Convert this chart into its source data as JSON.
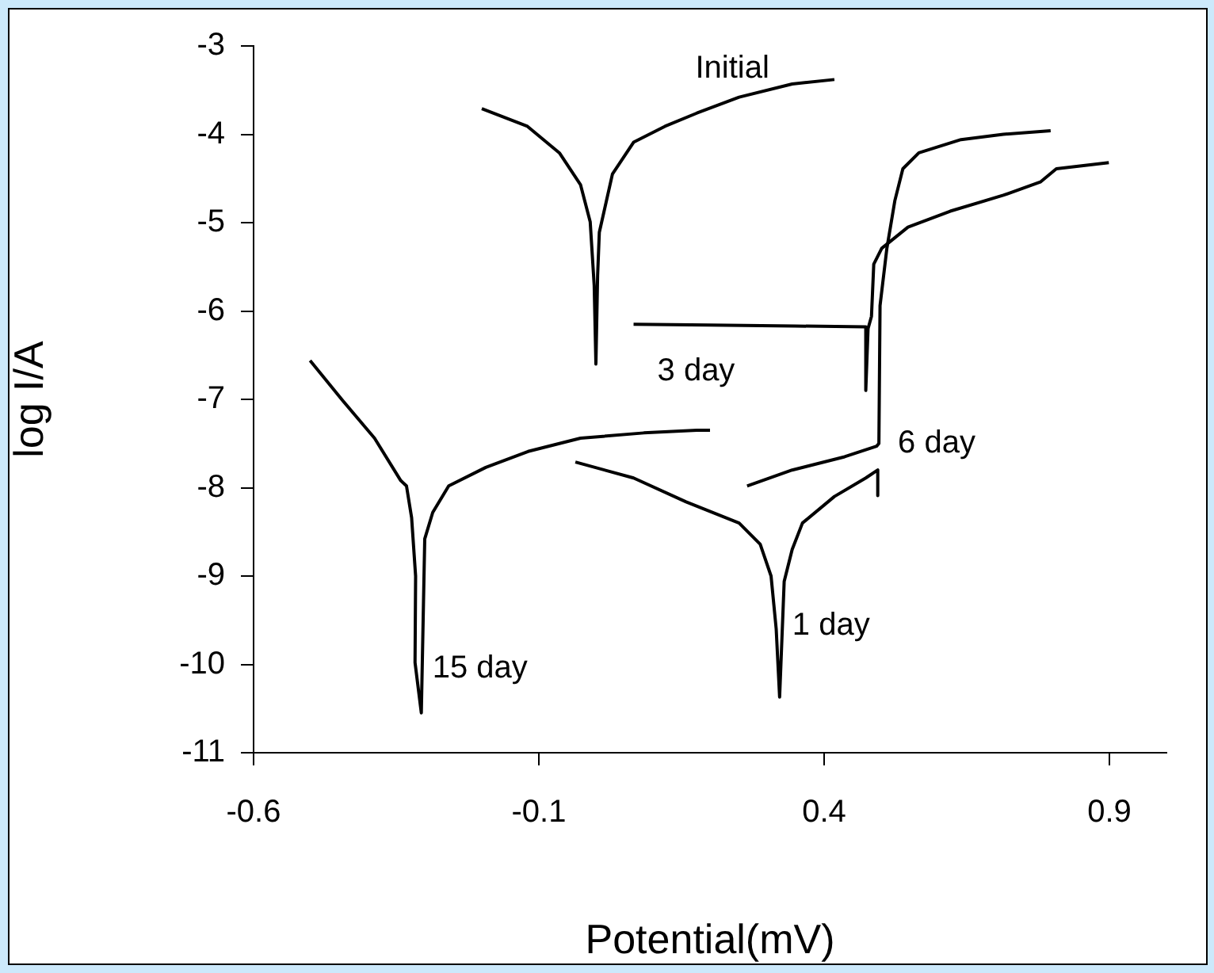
{
  "chart_data": {
    "type": "line",
    "xlabel": "Potential(mV)",
    "ylabel": "log I/A",
    "xlim": [
      -0.6,
      1.0
    ],
    "xticks": [
      -0.6,
      -0.1,
      0.4,
      0.9
    ],
    "ylim": [
      -11,
      -3
    ],
    "yticks": [
      -3,
      -4,
      -5,
      -6,
      -7,
      -8,
      -9,
      -10,
      -11
    ],
    "grid": false,
    "legend": false,
    "marker": "none",
    "line_style": "solid",
    "series": [
      {
        "name": "Initial",
        "color": "#000000",
        "x": [
          -0.2,
          -0.12,
          -0.064,
          -0.027,
          -0.01,
          -0.003,
          0.0,
          0.003,
          0.006,
          0.029,
          0.066,
          0.121,
          0.177,
          0.251,
          0.344,
          0.418
        ],
        "values": [
          -3.71,
          -3.91,
          -4.21,
          -4.57,
          -4.99,
          -5.71,
          -6.6,
          -5.6,
          -5.11,
          -4.45,
          -4.09,
          -3.91,
          -3.76,
          -3.58,
          -3.43,
          -3.38
        ]
      },
      {
        "name": "3 day",
        "color": "#000000",
        "x": [
          0.066,
          0.2,
          0.35,
          0.473,
          0.473,
          0.477,
          0.483,
          0.487,
          0.501,
          0.547,
          0.621,
          0.714,
          0.779,
          0.807,
          0.899
        ],
        "values": [
          -6.15,
          -6.16,
          -6.17,
          -6.18,
          -6.9,
          -6.2,
          -6.06,
          -5.47,
          -5.29,
          -5.05,
          -4.87,
          -4.69,
          -4.54,
          -4.39,
          -4.32
        ]
      },
      {
        "name": "6 day",
        "color": "#000000",
        "x": [
          0.265,
          0.344,
          0.436,
          0.492,
          0.496,
          0.498,
          0.51,
          0.524,
          0.538,
          0.566,
          0.64,
          0.714,
          0.797
        ],
        "values": [
          -7.98,
          -7.8,
          -7.65,
          -7.53,
          -7.5,
          -5.94,
          -5.29,
          -4.75,
          -4.39,
          -4.21,
          -4.06,
          -4.0,
          -3.96
        ]
      },
      {
        "name": "1 day",
        "color": "#000000",
        "x": [
          -0.036,
          0.066,
          0.158,
          0.251,
          0.288,
          0.307,
          0.316,
          0.322,
          0.33,
          0.344,
          0.362,
          0.418,
          0.473,
          0.494,
          0.494
        ],
        "values": [
          -7.71,
          -7.89,
          -8.16,
          -8.4,
          -8.64,
          -9.0,
          -9.6,
          -10.37,
          -9.06,
          -8.7,
          -8.4,
          -8.1,
          -7.89,
          -7.8,
          -8.09
        ]
      },
      {
        "name": "15 day",
        "color": "#000000",
        "x": [
          -0.501,
          -0.443,
          -0.388,
          -0.342,
          -0.332,
          -0.323,
          -0.316,
          -0.317,
          -0.306,
          -0.3,
          -0.286,
          -0.258,
          -0.193,
          -0.119,
          -0.027,
          0.084,
          0.177,
          0.2
        ],
        "values": [
          -6.56,
          -7.02,
          -7.44,
          -7.92,
          -7.98,
          -8.34,
          -9.0,
          -9.98,
          -10.55,
          -8.58,
          -8.28,
          -7.98,
          -7.77,
          -7.59,
          -7.44,
          -7.38,
          -7.35,
          -7.35
        ]
      }
    ]
  }
}
